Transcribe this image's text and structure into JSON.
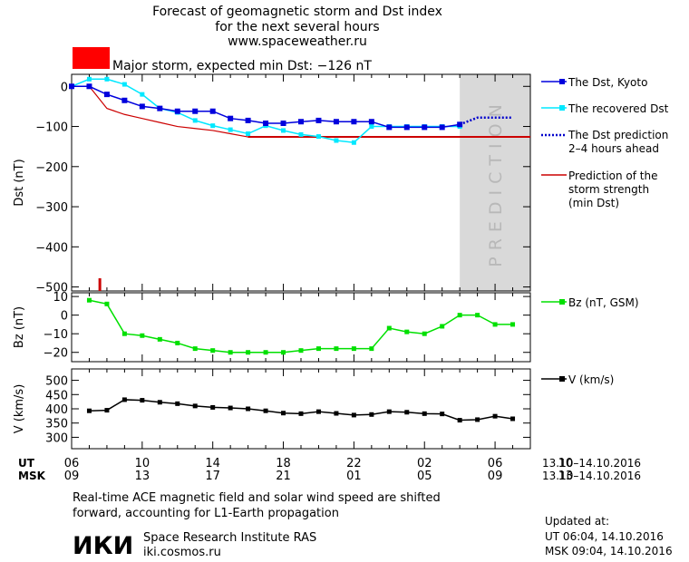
{
  "header": {
    "title_line1": "Forecast of geomagnetic storm and Dst index",
    "title_line2": "for the next several hours",
    "site": "www.spaceweather.ru",
    "storm_label": "Major storm, expected min Dst: −126 nT",
    "storm_color": "#ff0000"
  },
  "colors": {
    "dst_kyoto": "#0000dd",
    "recovered": "#00e8ff",
    "prediction": "#0000cc",
    "strength": "#cc0000",
    "bz": "#00e000",
    "v": "#000000",
    "prediction_band": "#d9d9d9"
  },
  "chart_data": [
    {
      "type": "line",
      "name": "dst",
      "ylabel": "Dst (nT)",
      "ylim": [
        -510,
        30
      ],
      "yticks": [
        0,
        -100,
        -200,
        -300,
        -400,
        -500
      ],
      "xlim": [
        0,
        26
      ],
      "prediction_band": [
        22,
        26
      ],
      "prediction_band_label": "PREDICTION",
      "series": [
        {
          "name": "The Dst, Kyoto",
          "x": [
            0,
            1,
            2,
            3,
            4,
            5,
            6,
            7,
            8,
            9,
            10,
            11,
            12,
            13,
            14,
            15,
            16,
            17,
            18,
            19,
            20,
            21,
            22
          ],
          "y": [
            0,
            0,
            -20,
            -35,
            -50,
            -55,
            -62,
            -62,
            -62,
            -80,
            -85,
            -92,
            -92,
            -88,
            -85,
            -88,
            -88,
            -88,
            -102,
            -102,
            -102,
            -102,
            -95
          ]
        },
        {
          "name": "The recovered Dst",
          "x": [
            0,
            1,
            2,
            3,
            4,
            5,
            6,
            7,
            8,
            9,
            10,
            11,
            12,
            13,
            14,
            15,
            16,
            17,
            18,
            19,
            20,
            21,
            22
          ],
          "y": [
            0,
            18,
            18,
            5,
            -20,
            -55,
            -65,
            -85,
            -98,
            -108,
            -118,
            -98,
            -110,
            -120,
            -125,
            -135,
            -140,
            -100,
            -100,
            -100,
            -100,
            -100,
            -100
          ]
        },
        {
          "name": "The Dst prediction 2–4 hours ahead",
          "style": "dotted",
          "x": [
            22,
            23,
            24,
            25
          ],
          "y": [
            -95,
            -78,
            -78,
            -78
          ]
        },
        {
          "name": "Prediction of the storm strength (min Dst)",
          "x": [
            0,
            1,
            2,
            3,
            4,
            5,
            6,
            7,
            8,
            9,
            10,
            11,
            12,
            13,
            14
          ],
          "y": [
            0,
            0,
            -55,
            -70,
            -80,
            -90,
            -100,
            -105,
            -110,
            -118,
            -126,
            -126,
            -126,
            -126,
            -126
          ]
        },
        {
          "name": "min Dst level",
          "x": [
            10,
            26
          ],
          "y": [
            -126,
            -126
          ]
        }
      ],
      "marker_x": 1.6
    },
    {
      "type": "line",
      "name": "bz",
      "ylabel": "Bz (nT)",
      "ylim": [
        -25,
        12
      ],
      "yticks": [
        10,
        0,
        -10,
        -20
      ],
      "xlim": [
        0,
        26
      ],
      "series": [
        {
          "name": "Bz (nT, GSM)",
          "x": [
            1,
            2,
            3,
            4,
            5,
            6,
            7,
            8,
            9,
            10,
            11,
            12,
            13,
            14,
            15,
            16,
            17,
            18,
            19,
            20,
            21,
            22,
            23,
            24,
            25
          ],
          "y": [
            8,
            6,
            -10,
            -11,
            -13,
            -15,
            -18,
            -19,
            -20,
            -20,
            -20,
            -20,
            -19,
            -18,
            -18,
            -18,
            -18,
            -7,
            -9,
            -10,
            -6,
            0,
            0,
            -5,
            -5
          ]
        }
      ]
    },
    {
      "type": "line",
      "name": "v",
      "ylabel": "V (km/s)",
      "ylim": [
        260,
        540
      ],
      "yticks": [
        500,
        450,
        400,
        350,
        300
      ],
      "xlim": [
        0,
        26
      ],
      "series": [
        {
          "name": "V (km/s)",
          "x": [
            1,
            2,
            3,
            4,
            5,
            6,
            7,
            8,
            9,
            10,
            11,
            12,
            13,
            14,
            15,
            16,
            17,
            18,
            19,
            20,
            21,
            22,
            23,
            24,
            25
          ],
          "y": [
            393,
            395,
            432,
            430,
            423,
            418,
            410,
            405,
            403,
            400,
            393,
            385,
            383,
            390,
            384,
            378,
            380,
            390,
            388,
            383,
            382,
            360,
            362,
            374,
            365
          ]
        }
      ]
    }
  ],
  "xaxis": {
    "ut_label": "UT",
    "msk_label": "MSK",
    "tick_x": [
      0,
      4,
      8,
      12,
      16,
      20,
      24,
      28
    ],
    "ut_ticks": [
      "06",
      "10",
      "14",
      "18",
      "22",
      "02",
      "06",
      "10"
    ],
    "msk_ticks": [
      "09",
      "13",
      "17",
      "21",
      "01",
      "05",
      "09",
      "13"
    ],
    "ut_range": "13.10–14.10.2016",
    "msk_range": "13.10–14.10.2016"
  },
  "footer": {
    "note_line1": "Real-time ACE magnetic field and solar wind speed are shifted",
    "note_line2": "forward, accounting for L1-Earth propagation",
    "logo_text": "ИКИ",
    "institute": "Space Research Institute RAS",
    "institute_url": "iki.cosmos.ru",
    "updated_label": "Updated at:",
    "updated_ut": "UT   06:04, 14.10.2016",
    "updated_msk": "MSK 09:04, 14.10.2016"
  },
  "legend": {
    "dst": [
      "The Dst, Kyoto",
      "The recovered Dst",
      "The Dst prediction",
      "2–4 hours ahead",
      "Prediction of the",
      "storm strength",
      "(min Dst)"
    ],
    "bz": "Bz (nT, GSM)",
    "v": "V (km/s)"
  }
}
